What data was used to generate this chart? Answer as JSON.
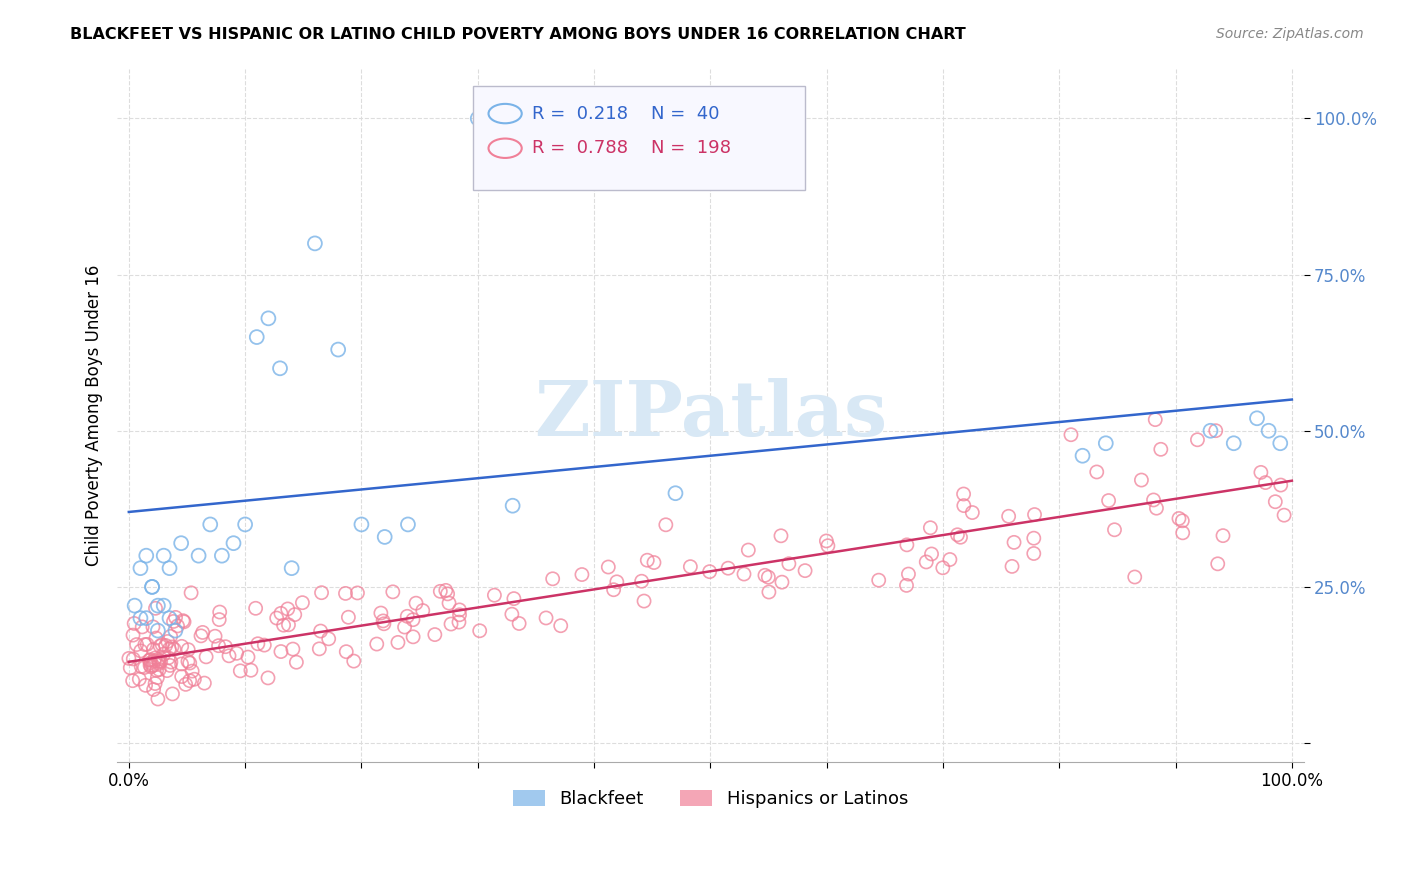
{
  "title": "BLACKFEET VS HISPANIC OR LATINO CHILD POVERTY AMONG BOYS UNDER 16 CORRELATION CHART",
  "source": "Source: ZipAtlas.com",
  "ylabel": "Child Poverty Among Boys Under 16",
  "blue_color": "#7ab3e8",
  "pink_color": "#f08098",
  "blue_line_color": "#3366cc",
  "pink_line_color": "#cc3366",
  "R_blue": 0.218,
  "N_blue": 40,
  "R_pink": 0.788,
  "N_pink": 198,
  "blue_intercept": 37.0,
  "blue_slope": 18.0,
  "pink_intercept": 13.0,
  "pink_slope": 29.0,
  "watermark_color": "#d8e8f5",
  "grid_color": "#dddddd",
  "tick_label_color": "#5588cc"
}
